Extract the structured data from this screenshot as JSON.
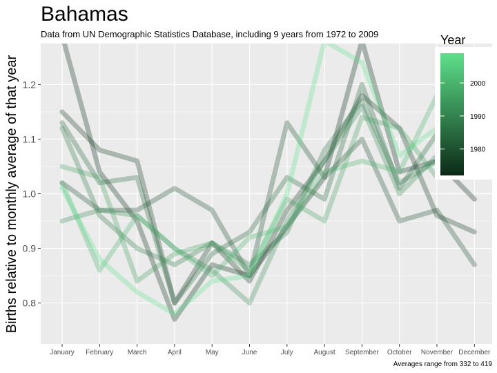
{
  "chart_data": {
    "type": "line",
    "title": "Bahamas",
    "subtitle": "Data from UN Demographic Statistics Database, including 9 years from 1972 to 2009",
    "ylabel": "Births relative to monthly average of that year",
    "caption": "Averages range from 332 to 419",
    "categories": [
      "January",
      "February",
      "March",
      "April",
      "May",
      "June",
      "July",
      "August",
      "September",
      "October",
      "November",
      "December"
    ],
    "yticks": [
      0.8,
      0.9,
      1.0,
      1.1,
      1.2
    ],
    "ytick_labels": [
      "0.8",
      "0.9",
      "1.0",
      "1.1",
      "1.2"
    ],
    "ylim": [
      0.725,
      1.275
    ],
    "grid": true,
    "legend": {
      "title": "Year",
      "ticks": [
        1980,
        1990,
        2000
      ],
      "range": [
        1972,
        2009
      ],
      "placement": "right"
    },
    "colors": {
      "low": "#0b2a16",
      "high": "#5ee08a",
      "panel": "#ebebeb",
      "grid": "#ffffff"
    },
    "series": [
      {
        "year": 1972,
        "values": [
          1.29,
          1.04,
          0.95,
          0.77,
          0.87,
          0.85,
          0.94,
          1.03,
          1.28,
          1.04,
          1.06,
          0.99
        ]
      },
      {
        "year": 1975,
        "values": [
          1.15,
          1.08,
          1.06,
          0.8,
          0.91,
          0.84,
          0.97,
          1.06,
          1.18,
          1.12,
          0.96,
          0.93
        ]
      },
      {
        "year": 1980,
        "values": [
          1.02,
          0.97,
          0.97,
          1.01,
          0.97,
          0.85,
          1.13,
          1.03,
          1.1,
          0.95,
          0.97,
          0.87
        ]
      },
      {
        "year": 1984,
        "values": [
          1.13,
          1.02,
          1.03,
          0.8,
          0.89,
          0.93,
          1.03,
          0.99,
          1.2,
          1.01,
          1.11,
          1.17
        ]
      },
      {
        "year": 1988,
        "values": [
          1.12,
          0.96,
          0.9,
          0.87,
          0.91,
          0.87,
          0.93,
          1.08,
          1.17,
          1.02,
          1.06,
          1.08
        ]
      },
      {
        "year": 1992,
        "values": [
          0.95,
          0.97,
          0.96,
          0.9,
          0.86,
          0.8,
          0.95,
          1.06,
          1.16,
          1.0,
          1.07,
          1.19
        ]
      },
      {
        "year": 1996,
        "values": [
          1.05,
          1.03,
          0.84,
          0.89,
          0.91,
          0.86,
          0.99,
          0.95,
          1.14,
          1.12,
          1.03,
          1.07
        ]
      },
      {
        "year": 2000,
        "values": [
          1.02,
          0.86,
          0.96,
          0.9,
          0.85,
          0.92,
          0.94,
          1.04,
          1.06,
          1.04,
          1.18,
          1.14
        ]
      },
      {
        "year": 2009,
        "values": [
          1.01,
          0.88,
          0.82,
          0.78,
          0.84,
          0.85,
          1.0,
          1.28,
          1.24,
          1.07,
          1.12,
          1.16
        ]
      }
    ]
  }
}
